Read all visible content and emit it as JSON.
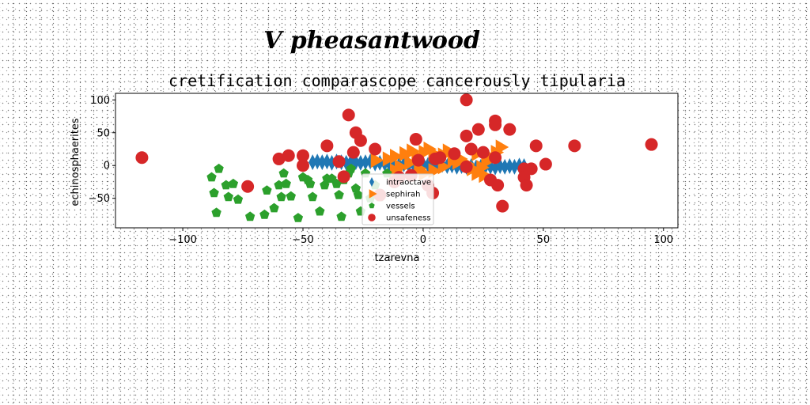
{
  "chart_data": {
    "type": "scatter",
    "suptitle": "V pheasantwood",
    "title": "cretification comparascope cancerously tipularia",
    "xlabel": "tzarevna",
    "ylabel": "echinosphaerites",
    "xlim": [
      -128,
      106
    ],
    "ylim": [
      -95,
      110
    ],
    "xticks": [
      -100,
      -50,
      0,
      50,
      100
    ],
    "yticks": [
      -50,
      0,
      50,
      100
    ],
    "xtick_labels": [
      "−100",
      "−50",
      "0",
      "50",
      "100"
    ],
    "ytick_labels": [
      "−50",
      "0",
      "50",
      "100"
    ],
    "grid": false,
    "legend_position": "lower center",
    "series": [
      {
        "name": "intraoctave",
        "marker": "thin_diamond",
        "color": "#1f77b4",
        "points": [
          [
            -46,
            5
          ],
          [
            -44,
            6
          ],
          [
            -42,
            5
          ],
          [
            -40,
            6
          ],
          [
            -38,
            4
          ],
          [
            -36,
            6
          ],
          [
            -34,
            5
          ],
          [
            -32,
            4
          ],
          [
            -30,
            6
          ],
          [
            -28,
            5
          ],
          [
            -26,
            4
          ],
          [
            -24,
            5
          ],
          [
            -22,
            6
          ],
          [
            -20,
            3
          ],
          [
            -18,
            4
          ],
          [
            -16,
            3
          ],
          [
            -14,
            2
          ],
          [
            -12,
            3
          ],
          [
            -10,
            1
          ],
          [
            -8,
            2
          ],
          [
            -6,
            1
          ],
          [
            -4,
            2
          ],
          [
            -2,
            1
          ],
          [
            0,
            2
          ],
          [
            2,
            1
          ],
          [
            4,
            0
          ],
          [
            6,
            0
          ],
          [
            8,
            1
          ],
          [
            10,
            -1
          ],
          [
            12,
            0
          ],
          [
            14,
            -2
          ],
          [
            16,
            -1
          ],
          [
            18,
            -2
          ],
          [
            20,
            -1
          ],
          [
            22,
            -3
          ],
          [
            24,
            -2
          ],
          [
            26,
            -1
          ],
          [
            28,
            -2
          ],
          [
            30,
            -3
          ],
          [
            32,
            -1
          ],
          [
            34,
            -2
          ],
          [
            36,
            -1
          ],
          [
            38,
            -2
          ],
          [
            40,
            0
          ],
          [
            42,
            -1
          ]
        ]
      },
      {
        "name": "sephirah",
        "marker": "triangle_right",
        "color": "#ff7f0e",
        "points": [
          [
            -20,
            8
          ],
          [
            -15,
            10
          ],
          [
            -12,
            14
          ],
          [
            -8,
            18
          ],
          [
            -5,
            22
          ],
          [
            -3,
            15
          ],
          [
            0,
            20
          ],
          [
            2,
            25
          ],
          [
            4,
            18
          ],
          [
            6,
            12
          ],
          [
            8,
            16
          ],
          [
            10,
            22
          ],
          [
            12,
            8
          ],
          [
            -6,
            4
          ],
          [
            -10,
            -2
          ],
          [
            -2,
            -5
          ],
          [
            0,
            -12
          ],
          [
            4,
            -8
          ],
          [
            8,
            -2
          ],
          [
            14,
            5
          ],
          [
            18,
            2
          ],
          [
            20,
            -5
          ],
          [
            22,
            -12
          ],
          [
            24,
            -3
          ],
          [
            26,
            6
          ],
          [
            28,
            12
          ],
          [
            30,
            20
          ],
          [
            32,
            28
          ],
          [
            22,
            18
          ],
          [
            25,
            -15
          ],
          [
            15,
            10
          ],
          [
            -12,
            -8
          ]
        ]
      },
      {
        "name": "vessels",
        "marker": "pentagon",
        "color": "#2ca02c",
        "points": [
          [
            -88,
            -18
          ],
          [
            -87,
            -42
          ],
          [
            -86,
            -72
          ],
          [
            -85,
            -5
          ],
          [
            -82,
            -30
          ],
          [
            -81,
            -48
          ],
          [
            -79,
            -28
          ],
          [
            -77,
            -52
          ],
          [
            -72,
            -78
          ],
          [
            -66,
            -75
          ],
          [
            -65,
            -38
          ],
          [
            -62,
            -65
          ],
          [
            -60,
            -30
          ],
          [
            -59,
            -48
          ],
          [
            -58,
            -12
          ],
          [
            -57,
            -28
          ],
          [
            -55,
            -47
          ],
          [
            -52,
            -80
          ],
          [
            -50,
            -18
          ],
          [
            -48,
            -22
          ],
          [
            -47,
            -28
          ],
          [
            -46,
            -48
          ],
          [
            -43,
            -70
          ],
          [
            -41,
            -30
          ],
          [
            -40,
            -20
          ],
          [
            -38,
            -20
          ],
          [
            -36,
            -28
          ],
          [
            -35,
            -45
          ],
          [
            -34,
            -78
          ],
          [
            -33,
            -22
          ],
          [
            -31,
            -12
          ],
          [
            -30,
            -5
          ],
          [
            -28,
            -35
          ],
          [
            -27,
            -45
          ],
          [
            -26,
            -70
          ],
          [
            -24,
            -12
          ],
          [
            -22,
            -50
          ],
          [
            -20,
            -30
          ],
          [
            -18,
            -48
          ],
          [
            -15,
            -12
          ],
          [
            -12,
            -25
          ]
        ]
      },
      {
        "name": "unsafeness",
        "marker": "circle",
        "color": "#d62728",
        "points": [
          [
            -117,
            12
          ],
          [
            -73,
            -32
          ],
          [
            -60,
            10
          ],
          [
            -56,
            15
          ],
          [
            -50,
            15
          ],
          [
            -50,
            0
          ],
          [
            -40,
            30
          ],
          [
            -35,
            6
          ],
          [
            -33,
            -17
          ],
          [
            -31,
            77
          ],
          [
            -29,
            20
          ],
          [
            -28,
            50
          ],
          [
            -26,
            38
          ],
          [
            -20,
            25
          ],
          [
            -18,
            -45
          ],
          [
            -12,
            -25
          ],
          [
            -10,
            -18
          ],
          [
            -5,
            -15
          ],
          [
            -3,
            40
          ],
          [
            -2,
            8
          ],
          [
            2,
            -30
          ],
          [
            4,
            -42
          ],
          [
            5,
            10
          ],
          [
            7,
            12
          ],
          [
            13,
            18
          ],
          [
            18,
            45
          ],
          [
            18,
            -2
          ],
          [
            18,
            100
          ],
          [
            20,
            25
          ],
          [
            23,
            55
          ],
          [
            25,
            20
          ],
          [
            28,
            -22
          ],
          [
            30,
            68
          ],
          [
            30,
            62
          ],
          [
            30,
            12
          ],
          [
            31,
            -30
          ],
          [
            33,
            -62
          ],
          [
            36,
            55
          ],
          [
            42,
            -5
          ],
          [
            42,
            -18
          ],
          [
            43,
            -30
          ],
          [
            45,
            -5
          ],
          [
            47,
            30
          ],
          [
            51,
            2
          ],
          [
            63,
            30
          ],
          [
            95,
            32
          ]
        ]
      }
    ]
  },
  "colors": {
    "intraoctave": "#1f77b4",
    "sephirah": "#ff7f0e",
    "vessels": "#2ca02c",
    "unsafeness": "#d62728",
    "axes": "#000000",
    "legend_border": "#cccccc"
  }
}
